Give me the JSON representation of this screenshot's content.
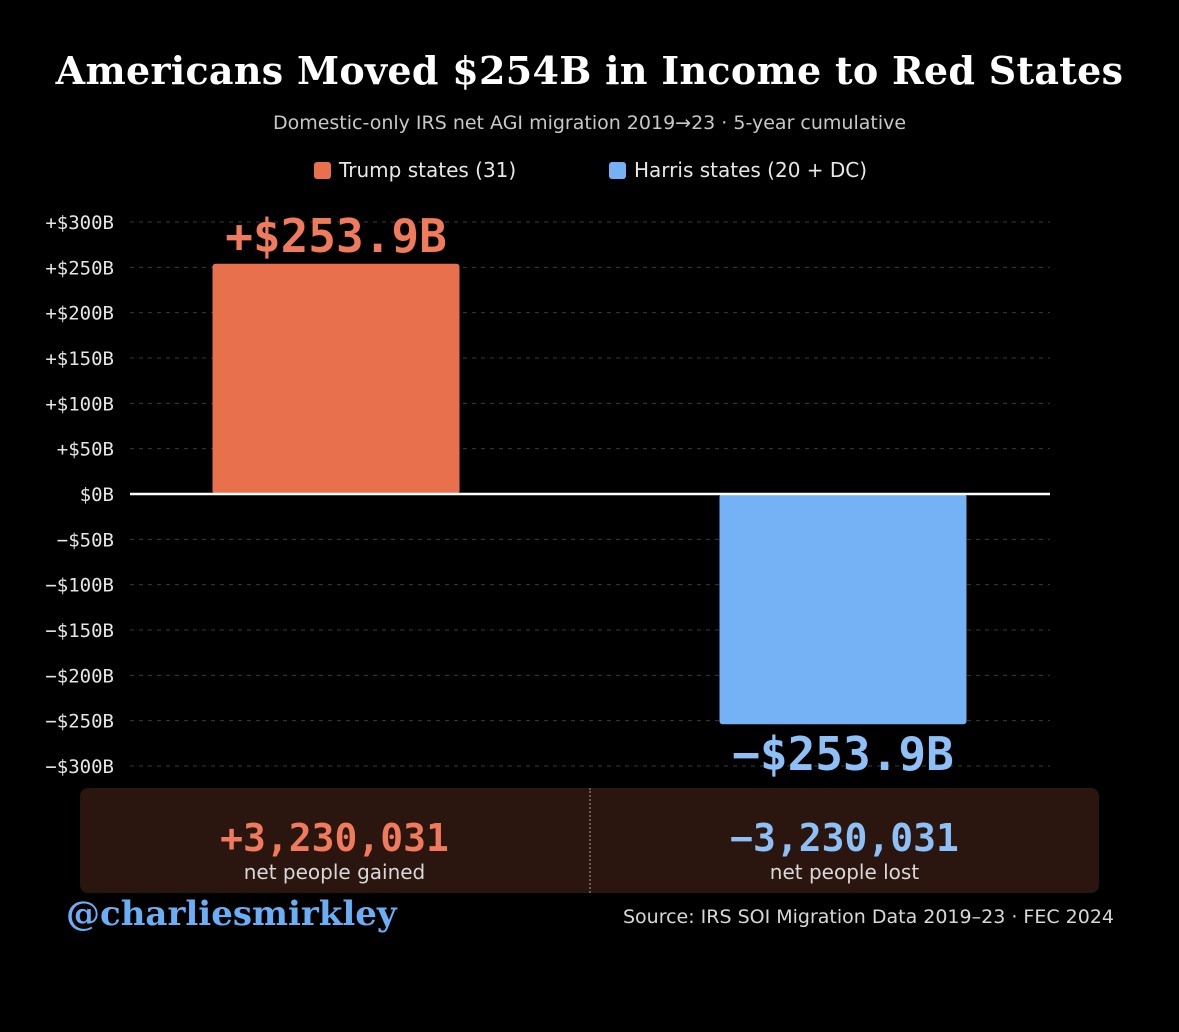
{
  "chart_data": {
    "type": "bar",
    "title": "Americans Moved $254B in Income to Red States",
    "subtitle": "Domestic-only IRS net AGI migration 2019→23 · 5-year cumulative",
    "categories": [
      "Trump states (31)",
      "Harris states (20 + DC)"
    ],
    "values": [
      253.9,
      -253.9
    ],
    "value_labels": [
      "+$253.9B",
      "−$253.9B"
    ],
    "colors": [
      "#e8704c",
      "#74b1f5"
    ],
    "label_colors": [
      "#f07a5c",
      "#8cc0f7"
    ],
    "ylim": [
      -300,
      300
    ],
    "yticks": [
      300,
      250,
      200,
      150,
      100,
      50,
      0,
      -50,
      -100,
      -150,
      -200,
      -250,
      -300
    ],
    "ytick_labels": [
      "+$300B",
      "+$250B",
      "+$200B",
      "+$150B",
      "+$100B",
      "+$50B",
      "$0B",
      "−$50B",
      "−$100B",
      "−$150B",
      "−$200B",
      "−$250B",
      "−$300B"
    ],
    "grid": true,
    "legend": {
      "position": "top-center",
      "entries": [
        {
          "label": "Trump states (31)",
          "color": "#e8704c"
        },
        {
          "label": "Harris states (20 + DC)",
          "color": "#74b1f5"
        }
      ]
    }
  },
  "people": {
    "gained_value": "+3,230,031",
    "gained_label": "net people gained",
    "lost_value": "−3,230,031",
    "lost_label": "net people lost"
  },
  "footer": {
    "handle": "@charliesmirkley",
    "source": "Source: IRS SOI Migration Data 2019–23 · FEC 2024"
  },
  "colors": {
    "background": "#000000",
    "trump": "#e8704c",
    "harris": "#74b1f5",
    "panel": "#2a160f",
    "handle": "#6aaff5"
  }
}
